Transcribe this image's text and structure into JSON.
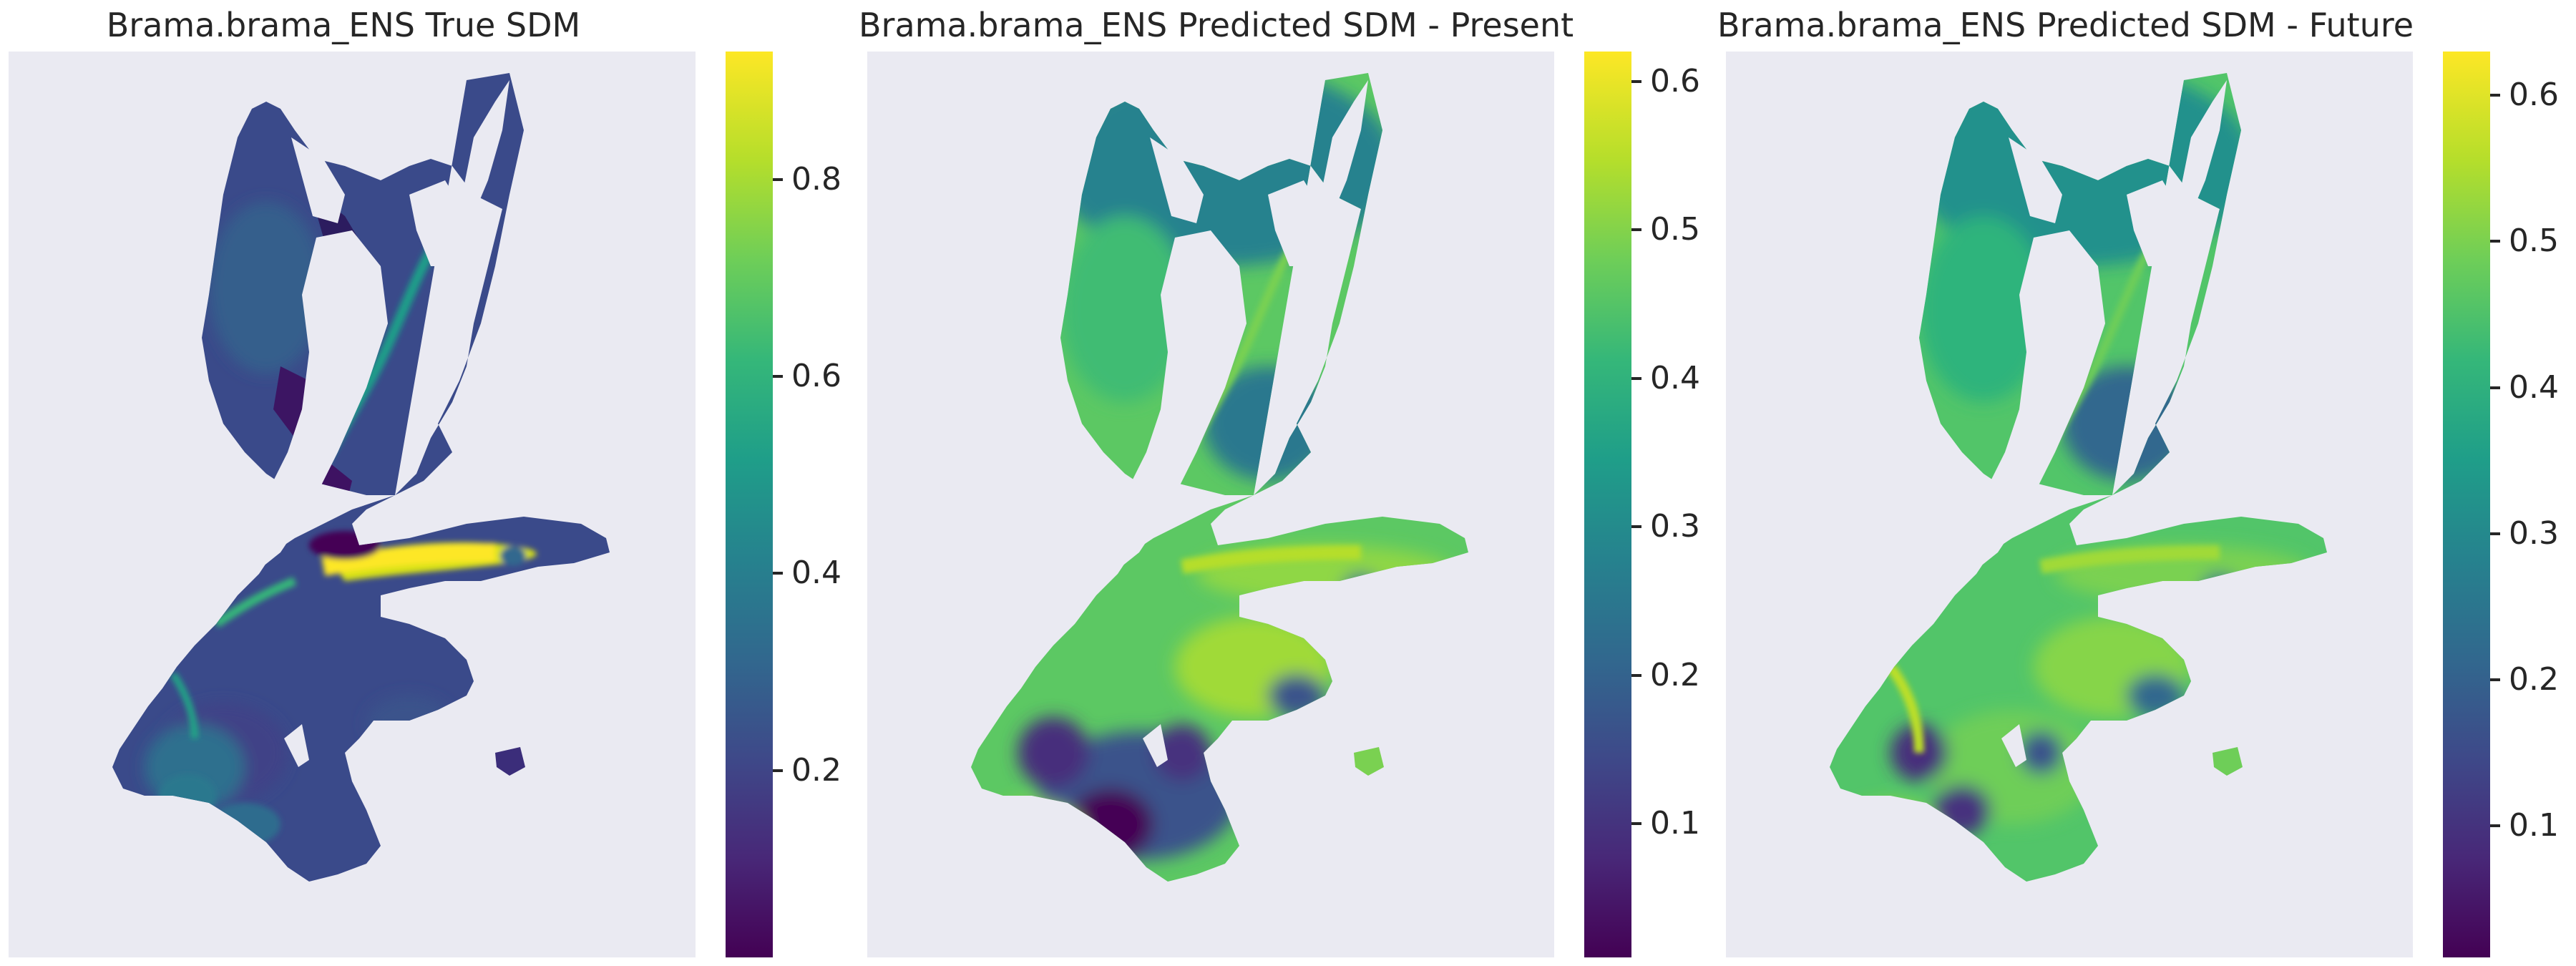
{
  "chart_data": [
    {
      "type": "heatmap",
      "title": "Brama.brama_ENS True SDM",
      "colormap": "viridis",
      "colorbar": {
        "min": 0.01,
        "max": 0.93,
        "ticks": [
          0.2,
          0.4,
          0.6,
          0.8
        ]
      },
      "grid": false,
      "background_color": "#eaeaf2"
    },
    {
      "type": "heatmap",
      "title": "Brama.brama_ENS Predicted SDM - Present",
      "colormap": "viridis",
      "colorbar": {
        "min": 0.01,
        "max": 0.62,
        "ticks": [
          0.1,
          0.2,
          0.3,
          0.4,
          0.5,
          0.6
        ]
      },
      "grid": false,
      "background_color": "#eaeaf2"
    },
    {
      "type": "heatmap",
      "title": "Brama.brama_ENS Predicted SDM - Future",
      "colormap": "viridis",
      "colorbar": {
        "min": 0.01,
        "max": 0.63,
        "ticks": [
          0.1,
          0.2,
          0.3,
          0.4,
          0.5,
          0.6
        ]
      },
      "grid": false,
      "background_color": "#eaeaf2"
    }
  ]
}
